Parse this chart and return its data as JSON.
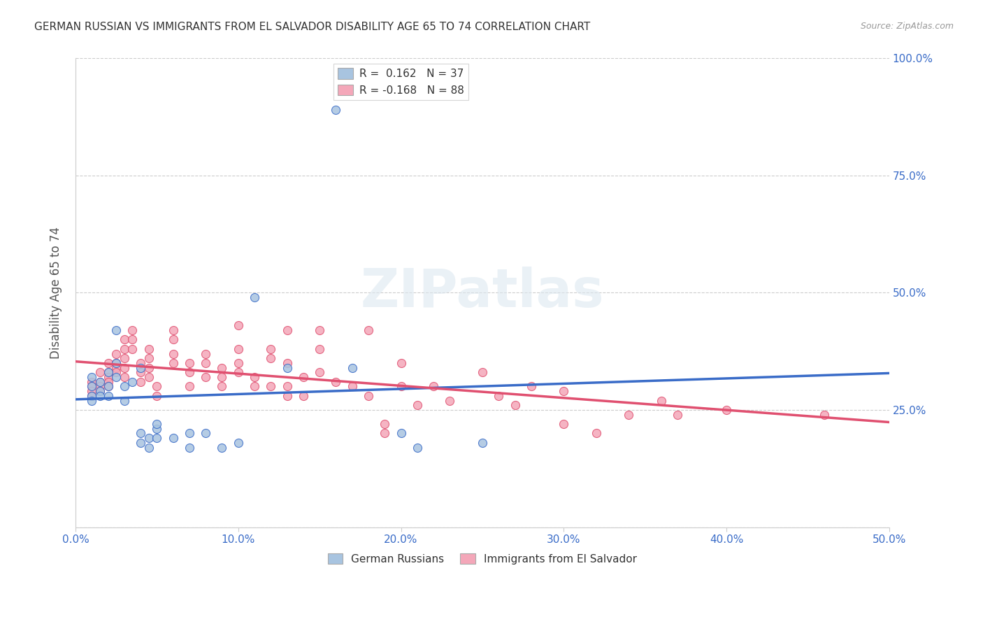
{
  "title": "GERMAN RUSSIAN VS IMMIGRANTS FROM EL SALVADOR DISABILITY AGE 65 TO 74 CORRELATION CHART",
  "source": "Source: ZipAtlas.com",
  "ylabel": "Disability Age 65 to 74",
  "color_blue": "#a8c4e0",
  "color_pink": "#f4a7b9",
  "line_color_blue": "#3a6cc8",
  "line_color_pink": "#e05070",
  "trendline_dashed_color": "#b0b0b0",
  "xlim": [
    0.0,
    0.5
  ],
  "ylim": [
    0.0,
    1.0
  ],
  "blue_points": [
    [
      0.01,
      0.28
    ],
    [
      0.01,
      0.27
    ],
    [
      0.01,
      0.32
    ],
    [
      0.01,
      0.3
    ],
    [
      0.015,
      0.31
    ],
    [
      0.015,
      0.29
    ],
    [
      0.015,
      0.28
    ],
    [
      0.02,
      0.33
    ],
    [
      0.02,
      0.3
    ],
    [
      0.02,
      0.28
    ],
    [
      0.025,
      0.35
    ],
    [
      0.025,
      0.32
    ],
    [
      0.025,
      0.42
    ],
    [
      0.03,
      0.3
    ],
    [
      0.03,
      0.27
    ],
    [
      0.035,
      0.31
    ],
    [
      0.04,
      0.34
    ],
    [
      0.04,
      0.2
    ],
    [
      0.04,
      0.18
    ],
    [
      0.045,
      0.19
    ],
    [
      0.045,
      0.17
    ],
    [
      0.05,
      0.21
    ],
    [
      0.05,
      0.19
    ],
    [
      0.05,
      0.22
    ],
    [
      0.06,
      0.19
    ],
    [
      0.07,
      0.2
    ],
    [
      0.07,
      0.17
    ],
    [
      0.08,
      0.2
    ],
    [
      0.09,
      0.17
    ],
    [
      0.1,
      0.18
    ],
    [
      0.11,
      0.49
    ],
    [
      0.13,
      0.34
    ],
    [
      0.16,
      0.89
    ],
    [
      0.17,
      0.34
    ],
    [
      0.2,
      0.2
    ],
    [
      0.21,
      0.17
    ],
    [
      0.25,
      0.18
    ]
  ],
  "pink_points": [
    [
      0.01,
      0.31
    ],
    [
      0.01,
      0.3
    ],
    [
      0.01,
      0.29
    ],
    [
      0.01,
      0.28
    ],
    [
      0.015,
      0.33
    ],
    [
      0.015,
      0.31
    ],
    [
      0.015,
      0.3
    ],
    [
      0.015,
      0.29
    ],
    [
      0.02,
      0.35
    ],
    [
      0.02,
      0.33
    ],
    [
      0.02,
      0.32
    ],
    [
      0.02,
      0.31
    ],
    [
      0.02,
      0.3
    ],
    [
      0.025,
      0.37
    ],
    [
      0.025,
      0.35
    ],
    [
      0.025,
      0.34
    ],
    [
      0.025,
      0.33
    ],
    [
      0.03,
      0.4
    ],
    [
      0.03,
      0.38
    ],
    [
      0.03,
      0.36
    ],
    [
      0.03,
      0.34
    ],
    [
      0.03,
      0.32
    ],
    [
      0.035,
      0.42
    ],
    [
      0.035,
      0.4
    ],
    [
      0.035,
      0.38
    ],
    [
      0.04,
      0.35
    ],
    [
      0.04,
      0.33
    ],
    [
      0.04,
      0.31
    ],
    [
      0.045,
      0.38
    ],
    [
      0.045,
      0.36
    ],
    [
      0.045,
      0.34
    ],
    [
      0.045,
      0.32
    ],
    [
      0.05,
      0.3
    ],
    [
      0.05,
      0.28
    ],
    [
      0.06,
      0.42
    ],
    [
      0.06,
      0.4
    ],
    [
      0.06,
      0.37
    ],
    [
      0.06,
      0.35
    ],
    [
      0.07,
      0.35
    ],
    [
      0.07,
      0.33
    ],
    [
      0.07,
      0.3
    ],
    [
      0.08,
      0.37
    ],
    [
      0.08,
      0.35
    ],
    [
      0.08,
      0.32
    ],
    [
      0.09,
      0.34
    ],
    [
      0.09,
      0.32
    ],
    [
      0.09,
      0.3
    ],
    [
      0.1,
      0.43
    ],
    [
      0.1,
      0.38
    ],
    [
      0.1,
      0.35
    ],
    [
      0.1,
      0.33
    ],
    [
      0.11,
      0.32
    ],
    [
      0.11,
      0.3
    ],
    [
      0.12,
      0.38
    ],
    [
      0.12,
      0.36
    ],
    [
      0.12,
      0.3
    ],
    [
      0.13,
      0.42
    ],
    [
      0.13,
      0.35
    ],
    [
      0.13,
      0.3
    ],
    [
      0.13,
      0.28
    ],
    [
      0.14,
      0.32
    ],
    [
      0.14,
      0.28
    ],
    [
      0.15,
      0.42
    ],
    [
      0.15,
      0.38
    ],
    [
      0.15,
      0.33
    ],
    [
      0.16,
      0.31
    ],
    [
      0.17,
      0.3
    ],
    [
      0.18,
      0.42
    ],
    [
      0.18,
      0.28
    ],
    [
      0.19,
      0.22
    ],
    [
      0.19,
      0.2
    ],
    [
      0.2,
      0.35
    ],
    [
      0.2,
      0.3
    ],
    [
      0.21,
      0.26
    ],
    [
      0.22,
      0.3
    ],
    [
      0.23,
      0.27
    ],
    [
      0.25,
      0.33
    ],
    [
      0.26,
      0.28
    ],
    [
      0.27,
      0.26
    ],
    [
      0.28,
      0.3
    ],
    [
      0.3,
      0.29
    ],
    [
      0.3,
      0.22
    ],
    [
      0.32,
      0.2
    ],
    [
      0.34,
      0.24
    ],
    [
      0.36,
      0.27
    ],
    [
      0.37,
      0.24
    ],
    [
      0.4,
      0.25
    ],
    [
      0.46,
      0.24
    ]
  ]
}
